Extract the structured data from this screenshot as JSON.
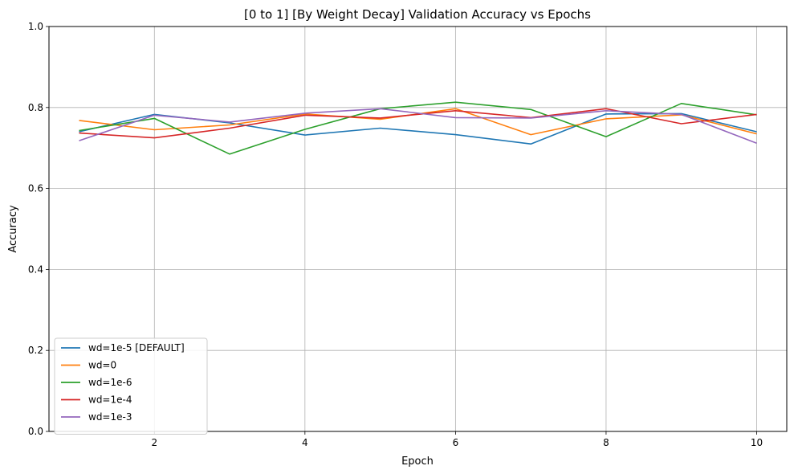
{
  "chart_data": {
    "type": "line",
    "title": "[0 to 1] [By Weight Decay] Validation Accuracy vs Epochs",
    "xlabel": "Epoch",
    "ylabel": "Accuracy",
    "xlim": [
      0.6,
      10.4
    ],
    "ylim": [
      0.0,
      1.0
    ],
    "x_ticks": [
      2,
      4,
      6,
      8,
      10
    ],
    "x_tick_labels": [
      "2",
      "4",
      "6",
      "8",
      "10"
    ],
    "y_ticks": [
      0.0,
      0.2,
      0.4,
      0.6,
      0.8,
      1.0
    ],
    "y_tick_labels": [
      "0.0",
      "0.2",
      "0.4",
      "0.6",
      "0.8",
      "1.0"
    ],
    "grid": true,
    "legend_position": "lower-left",
    "x": [
      1,
      2,
      3,
      4,
      5,
      6,
      7,
      8,
      9,
      10
    ],
    "series": [
      {
        "name": "wd=1e-5 [DEFAULT]",
        "color": "#1f77b4",
        "values": [
          0.74,
          0.783,
          0.762,
          0.732,
          0.749,
          0.733,
          0.71,
          0.784,
          0.785,
          0.74
        ]
      },
      {
        "name": "wd=0",
        "color": "#ff7f0e",
        "values": [
          0.768,
          0.745,
          0.757,
          0.784,
          0.771,
          0.797,
          0.733,
          0.772,
          0.782,
          0.735
        ]
      },
      {
        "name": "wd=1e-6",
        "color": "#2ca02c",
        "values": [
          0.743,
          0.773,
          0.685,
          0.746,
          0.797,
          0.813,
          0.795,
          0.728,
          0.81,
          0.782
        ]
      },
      {
        "name": "wd=1e-4",
        "color": "#d62728",
        "values": [
          0.737,
          0.725,
          0.749,
          0.781,
          0.774,
          0.792,
          0.775,
          0.797,
          0.76,
          0.783
        ]
      },
      {
        "name": "wd=1e-3",
        "color": "#9467bd",
        "values": [
          0.718,
          0.781,
          0.764,
          0.786,
          0.797,
          0.775,
          0.774,
          0.792,
          0.783,
          0.712
        ]
      }
    ]
  }
}
